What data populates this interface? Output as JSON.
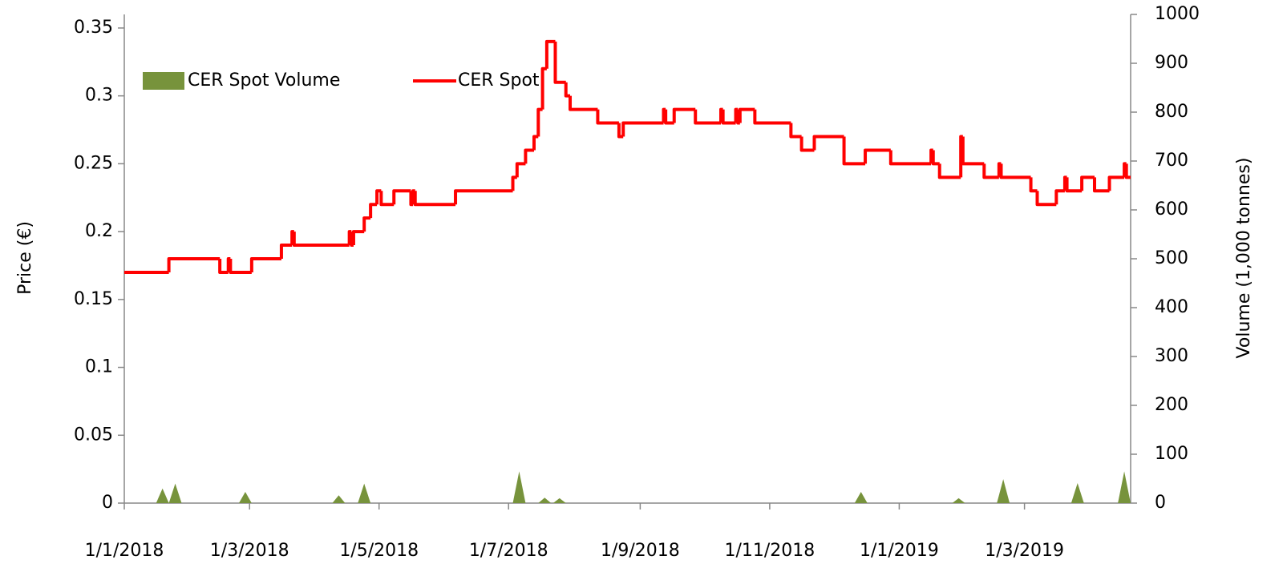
{
  "chart_data": {
    "type": "line",
    "step": "after",
    "ylabel": "Price (€)",
    "y2label": "Volume (1,000 tonnes)",
    "xlim": [
      "1/1/2018",
      "20/4/2019"
    ],
    "xticks": [
      "1/1/2018",
      "1/3/2018",
      "1/5/2018",
      "1/7/2018",
      "1/9/2018",
      "1/11/2018",
      "1/1/2019",
      "1/3/2019"
    ],
    "ylim": [
      0,
      0.36
    ],
    "yticks": [
      0,
      0.05,
      0.1,
      0.15,
      0.2,
      0.25,
      0.3,
      0.35
    ],
    "y2lim": [
      0,
      1000
    ],
    "y2ticks": [
      0,
      100,
      200,
      300,
      400,
      500,
      600,
      700,
      800,
      900,
      1000
    ],
    "legend": "upper left",
    "series": [
      {
        "name": "CER Spot Volume",
        "type": "area",
        "axis": "y2",
        "color": "#77933c",
        "x": [
          "19/1/2018",
          "25/1/2018",
          "27/2/2018",
          "12/4/2018",
          "24/4/2018",
          "6/7/2018",
          "18/7/2018",
          "25/7/2018",
          "14/12/2018",
          "29/1/2019",
          "19/2/2019",
          "26/3/2019",
          "17/4/2019"
        ],
        "values": [
          30,
          40,
          23,
          16,
          40,
          65,
          11,
          10,
          23,
          10,
          49,
          41,
          65
        ]
      },
      {
        "name": "CER Spot",
        "type": "line",
        "color": "#ff0000",
        "x": [
          "1/1/2018",
          "22/1/2018",
          "15/2/2018",
          "19/2/2018",
          "20/2/2018",
          "2/3/2018",
          "16/3/2018",
          "21/3/2018",
          "22/3/2018",
          "17/4/2018",
          "18/4/2018",
          "19/4/2018",
          "24/4/2018",
          "27/4/2018",
          "30/4/2018",
          "2/5/2018",
          "8/5/2018",
          "16/5/2018",
          "17/5/2018",
          "18/5/2018",
          "6/6/2018",
          "3/7/2018",
          "5/7/2018",
          "9/7/2018",
          "13/7/2018",
          "15/7/2018",
          "17/7/2018",
          "19/7/2018",
          "23/7/2018",
          "28/7/2018",
          "30/7/2018",
          "12/8/2018",
          "22/8/2018",
          "24/8/2018",
          "12/9/2018",
          "13/9/2018",
          "17/9/2018",
          "27/9/2018",
          "9/10/2018",
          "10/10/2018",
          "16/10/2018",
          "17/10/2018",
          "18/10/2018",
          "25/10/2018",
          "11/11/2018",
          "16/11/2018",
          "22/11/2018",
          "6/12/2018",
          "16/12/2018",
          "28/12/2018",
          "16/1/2019",
          "17/1/2019",
          "20/1/2019",
          "30/1/2019",
          "31/1/2019",
          "10/2/2019",
          "17/2/2019",
          "18/2/2019",
          "4/3/2019",
          "7/3/2019",
          "16/3/2019",
          "20/3/2019",
          "21/3/2019",
          "28/3/2019",
          "3/4/2019",
          "10/4/2019",
          "17/4/2019",
          "18/4/2019",
          "20/4/2019"
        ],
        "values": [
          0.17,
          0.18,
          0.17,
          0.18,
          0.17,
          0.18,
          0.19,
          0.2,
          0.19,
          0.2,
          0.19,
          0.2,
          0.21,
          0.22,
          0.23,
          0.22,
          0.23,
          0.22,
          0.23,
          0.22,
          0.23,
          0.24,
          0.25,
          0.26,
          0.27,
          0.29,
          0.32,
          0.34,
          0.31,
          0.3,
          0.29,
          0.28,
          0.27,
          0.28,
          0.29,
          0.28,
          0.29,
          0.28,
          0.29,
          0.28,
          0.29,
          0.28,
          0.29,
          0.28,
          0.27,
          0.26,
          0.27,
          0.25,
          0.26,
          0.25,
          0.26,
          0.25,
          0.24,
          0.27,
          0.25,
          0.24,
          0.25,
          0.24,
          0.23,
          0.22,
          0.23,
          0.24,
          0.23,
          0.24,
          0.23,
          0.24,
          0.25,
          0.24,
          0.24
        ]
      }
    ]
  }
}
